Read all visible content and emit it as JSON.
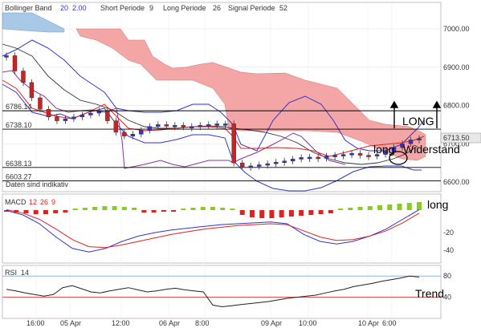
{
  "header": {
    "bb_label": "Bollinger Band",
    "bb_p1": "20",
    "bb_p2": "2.00",
    "short_label": "Short Periode",
    "short_val": "9",
    "long_label": "Long Periode",
    "long_val": "26",
    "signal_label": "Signal Periode",
    "signal_val": "52"
  },
  "notice": "Daten sind indikativ",
  "annotations": {
    "long_upper": "LONG",
    "long_lower": "long",
    "widerstand": "Widerstand",
    "macd_long": "long",
    "rsi_trend": "Trend"
  },
  "price_tag": "6713.50",
  "level_labels": [
    "6786.14",
    "6738.10",
    "6638.13",
    "6603.27"
  ],
  "macd_header": {
    "label": "MACD",
    "p1": "12",
    "p2": "26",
    "p3": "9"
  },
  "rsi_header": {
    "label": "RSI",
    "p1": "14"
  },
  "colors": {
    "cloud_red": "#f4a6a6",
    "cloud_blue": "#a8c8e8",
    "bollinger": "#3333cc",
    "hist_pos": "#88cc22",
    "hist_neg": "#dd2222",
    "signal": "#dd2222",
    "level": "#000000"
  },
  "chart_data": [
    {
      "type": "line",
      "title": "",
      "x_tick_labels": [
        "16:00",
        "05 Apr",
        "12:00",
        "06 Apr",
        "8:00",
        "09 Apr",
        "10:00",
        "10 Apr",
        "6:00"
      ],
      "y_tick_labels": [
        "7000.00",
        "6900.00",
        "6800.00",
        "6700.00",
        "6600.00"
      ],
      "ylim": [
        6600,
        7000
      ],
      "grid": true,
      "levels": [
        6786.14,
        6738.1,
        6638.13,
        6603.27
      ],
      "last_price": 6713.5,
      "series": [
        {
          "name": "Bollinger Band",
          "style": "candlestick",
          "values": [
            6930,
            6890,
            6860,
            6820,
            6790,
            6770,
            6760,
            6765,
            6770,
            6775,
            6780,
            6785,
            6760,
            6730,
            6720,
            6725,
            6735,
            6745,
            6750,
            6748,
            6748,
            6745,
            6745,
            6748,
            6750,
            6752,
            6752,
            6650,
            6640,
            6642,
            6645,
            6648,
            6652,
            6655,
            6660,
            6664,
            6665,
            6662,
            6668,
            6670,
            6672,
            6675,
            6670,
            6668,
            6672,
            6680,
            6690,
            6700,
            6710,
            6713.5
          ]
        }
      ]
    },
    {
      "type": "bar",
      "title": "MACD 12 26 9",
      "y_tick_labels": [
        "-20",
        "-40"
      ],
      "series": [
        {
          "name": "histogram",
          "values": [
            -2,
            -3,
            -4,
            -5,
            -5,
            -4,
            -3,
            2,
            3,
            4,
            5,
            5,
            4,
            3,
            -3,
            -3,
            -2,
            -2,
            2,
            3,
            4,
            4,
            3,
            2,
            -6,
            -9,
            -10,
            -10,
            -9,
            -8,
            -7,
            -6,
            -5,
            -4,
            2,
            3,
            4,
            5,
            6,
            7,
            8,
            9,
            10
          ]
        },
        {
          "name": "MACD",
          "values": [
            5,
            0,
            -10,
            -25,
            -38,
            -42,
            -38,
            -30,
            -24,
            -20,
            -17,
            -15,
            -13,
            -11,
            -10,
            -9,
            -8,
            -10,
            -22,
            -30,
            -33,
            -30,
            -24,
            -16,
            -5,
            6
          ]
        },
        {
          "name": "Signal",
          "values": [
            6,
            2,
            -5,
            -16,
            -28,
            -36,
            -37,
            -34,
            -30,
            -26,
            -22,
            -19,
            -16,
            -14,
            -12,
            -11,
            -10,
            -11,
            -18,
            -25,
            -29,
            -28,
            -24,
            -18,
            -9,
            2
          ]
        }
      ]
    },
    {
      "type": "line",
      "title": "RSI 14",
      "y_tick_labels": [
        "80",
        "40"
      ],
      "ylim": [
        0,
        100
      ],
      "series": [
        {
          "name": "RSI",
          "values": [
            55,
            52,
            48,
            45,
            42,
            45,
            58,
            62,
            56,
            50,
            48,
            52,
            55,
            58,
            54,
            50,
            52,
            55,
            57,
            54,
            52,
            50,
            25,
            22,
            24,
            26,
            28,
            30,
            32,
            35,
            38,
            40,
            42,
            44,
            48,
            52,
            55,
            60,
            63,
            66,
            70,
            73,
            76,
            80,
            78
          ]
        }
      ]
    }
  ]
}
